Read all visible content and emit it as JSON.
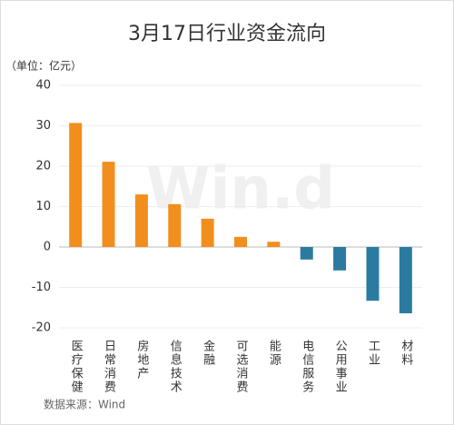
{
  "chart_data": {
    "type": "bar",
    "title": "3月17日行业资金流向",
    "unit_label": "（单位：亿元）",
    "source": "数据来源：Wind",
    "watermark": "Win.d",
    "categories": [
      "医疗保健",
      "日常消费",
      "房地产",
      "信息技术",
      "金融",
      "可选消费",
      "能源",
      "电信服务",
      "公用事业",
      "工业",
      "材料"
    ],
    "values": [
      30.7,
      21.1,
      13.0,
      10.6,
      7.0,
      2.5,
      1.3,
      -3.1,
      -5.8,
      -13.3,
      -16.4
    ],
    "colors": [
      "#f28e1e",
      "#f28e1e",
      "#f28e1e",
      "#f28e1e",
      "#f28e1e",
      "#f28e1e",
      "#f28e1e",
      "#2b7ba0",
      "#2b7ba0",
      "#2b7ba0",
      "#2b7ba0"
    ],
    "ylim": [
      -20,
      40
    ],
    "yticks": [
      -20,
      -10,
      0,
      10,
      20,
      30,
      40
    ],
    "grid": true
  }
}
